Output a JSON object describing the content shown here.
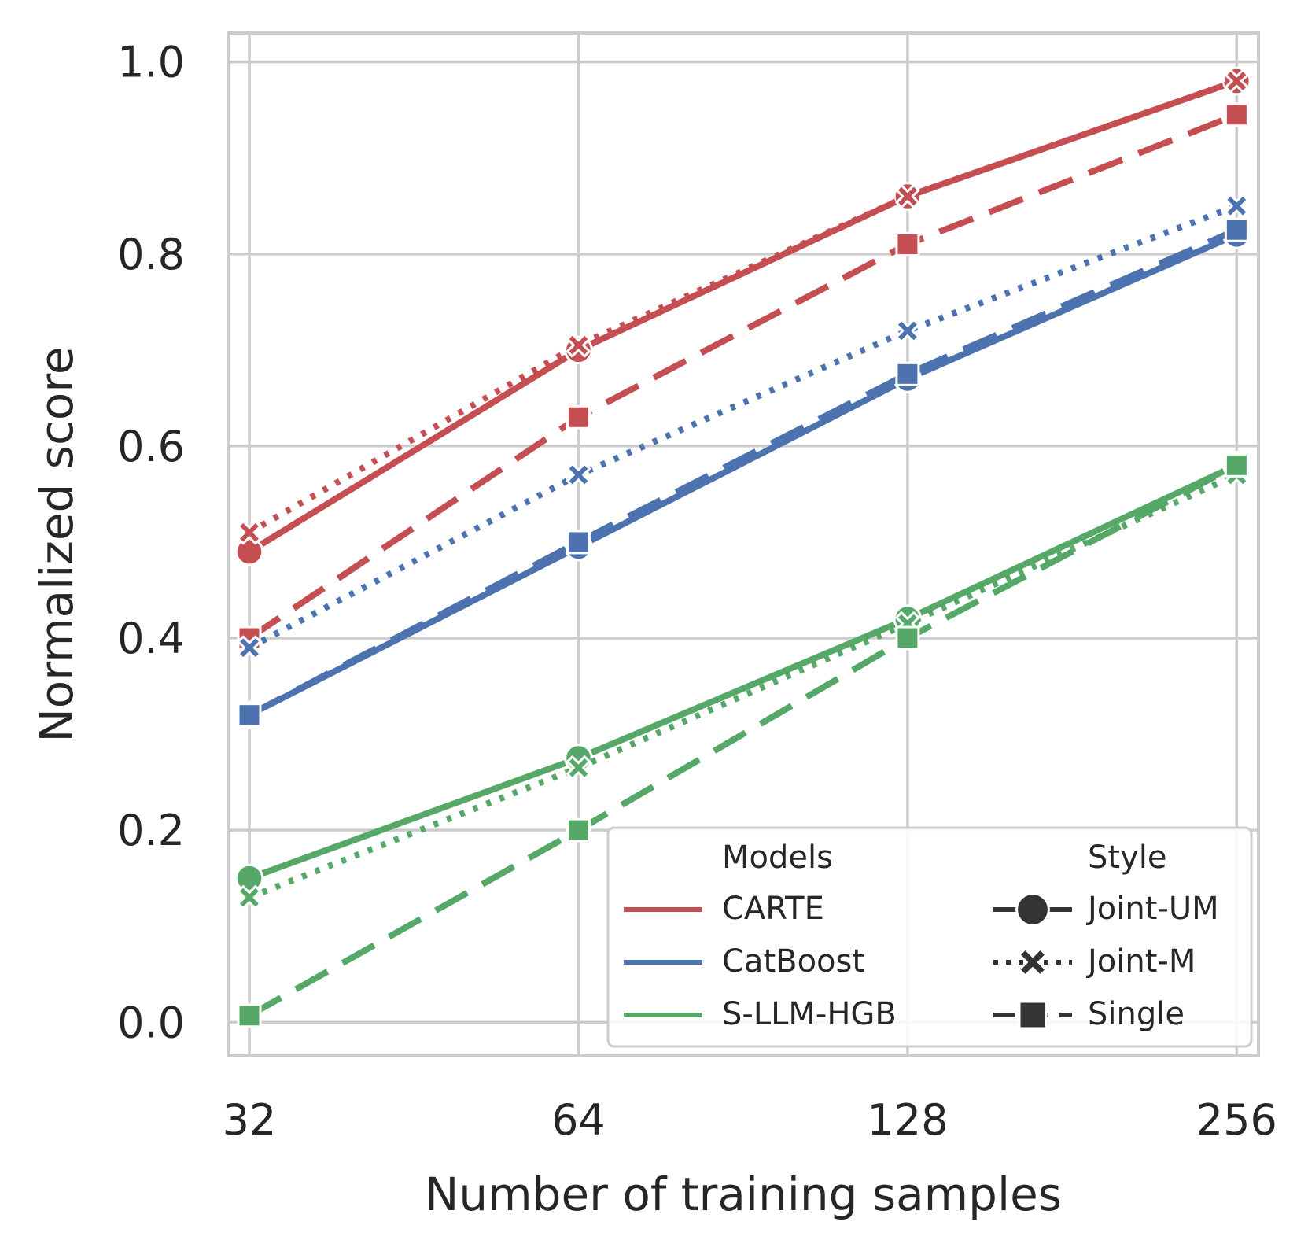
{
  "chart_data": {
    "type": "line",
    "xlabel": "Number of training samples",
    "ylabel": "Normalized score",
    "x": [
      32,
      64,
      128,
      256
    ],
    "x_tick_labels": [
      "32",
      "64",
      "128",
      "256"
    ],
    "x_scale": "log2",
    "y_ticks": [
      0.0,
      0.2,
      0.4,
      0.6,
      0.8,
      1.0
    ],
    "y_tick_labels": [
      "0.0",
      "0.2",
      "0.4",
      "0.6",
      "0.8",
      "1.0"
    ],
    "ylim": [
      -0.035,
      1.03
    ],
    "xlim": [
      30.6,
      268
    ],
    "grid": true,
    "legend_placement": "lower-right",
    "legend": {
      "models_title": "Models",
      "style_title": "Style",
      "models": [
        {
          "name": "CARTE",
          "color": "#c44e52"
        },
        {
          "name": "CatBoost",
          "color": "#4c72b0"
        },
        {
          "name": "S-LLM-HGB",
          "color": "#55a868"
        }
      ],
      "styles": [
        {
          "name": "Joint-UM",
          "dash": "solid",
          "marker": "circle"
        },
        {
          "name": "Joint-M",
          "dash": "dotted",
          "marker": "x"
        },
        {
          "name": "Single",
          "dash": "dashed",
          "marker": "square"
        }
      ]
    },
    "series": [
      {
        "model": "CARTE",
        "style": "Joint-UM",
        "values": [
          0.49,
          0.7,
          0.86,
          0.98
        ]
      },
      {
        "model": "CARTE",
        "style": "Joint-M",
        "values": [
          0.51,
          0.705,
          0.86,
          0.98
        ]
      },
      {
        "model": "CARTE",
        "style": "Single",
        "values": [
          0.4,
          0.63,
          0.81,
          0.945
        ]
      },
      {
        "model": "CatBoost",
        "style": "Joint-UM",
        "values": [
          0.32,
          0.495,
          0.67,
          0.82
        ]
      },
      {
        "model": "CatBoost",
        "style": "Joint-M",
        "values": [
          0.39,
          0.57,
          0.72,
          0.85
        ]
      },
      {
        "model": "CatBoost",
        "style": "Single",
        "values": [
          0.32,
          0.5,
          0.675,
          0.825
        ]
      },
      {
        "model": "S-LLM-HGB",
        "style": "Joint-UM",
        "values": [
          0.15,
          0.275,
          0.42,
          0.58
        ]
      },
      {
        "model": "S-LLM-HGB",
        "style": "Joint-M",
        "values": [
          0.13,
          0.265,
          0.415,
          0.57
        ]
      },
      {
        "model": "S-LLM-HGB",
        "style": "Single",
        "values": [
          0.007,
          0.2,
          0.4,
          0.58
        ]
      }
    ]
  }
}
